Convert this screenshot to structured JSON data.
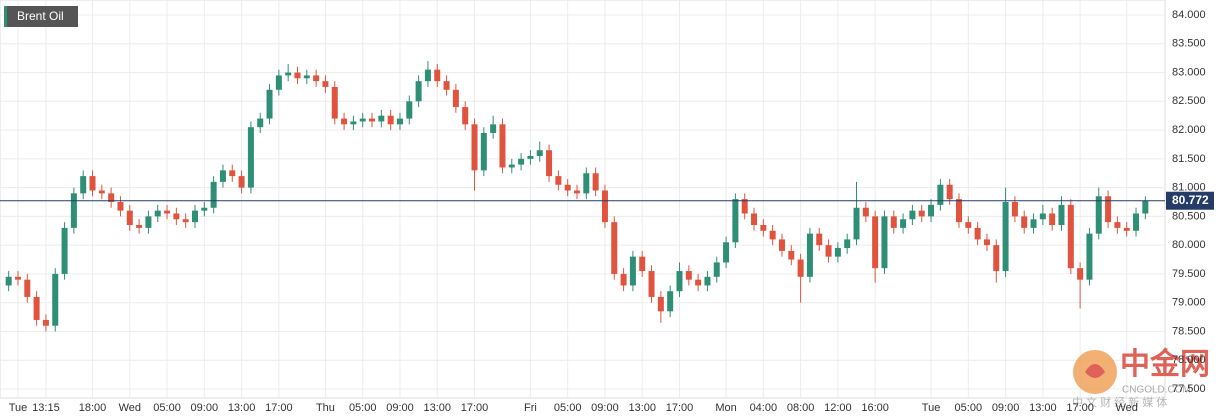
{
  "chart_data": {
    "type": "candlestick",
    "series_name": "Brent Oil",
    "up_color": "#2f8f76",
    "down_color": "#e0533f",
    "last_price": 80.772,
    "last_price_color": "#253c68",
    "grid": true,
    "ylim": [
      77.5,
      84.0
    ],
    "yticks": [
      {
        "value": 77.5,
        "label": "77.500"
      },
      {
        "value": 78.0,
        "label": "78.000"
      },
      {
        "value": 78.5,
        "label": "78.500"
      },
      {
        "value": 79.0,
        "label": "79.000"
      },
      {
        "value": 79.5,
        "label": "79.500"
      },
      {
        "value": 80.0,
        "label": "80.000"
      },
      {
        "value": 80.5,
        "label": "80.500"
      },
      {
        "value": 81.0,
        "label": "81.000"
      },
      {
        "value": 81.5,
        "label": "81.500"
      },
      {
        "value": 82.0,
        "label": "82.000"
      },
      {
        "value": 82.5,
        "label": "82.500"
      },
      {
        "value": 83.0,
        "label": "83.000"
      },
      {
        "value": 83.5,
        "label": "83.500"
      },
      {
        "value": 84.0,
        "label": "84.000"
      }
    ],
    "categories": [
      null,
      "Tue",
      null,
      null,
      "13:15",
      null,
      null,
      null,
      null,
      "18:00",
      null,
      null,
      null,
      "Wed",
      null,
      null,
      null,
      "05:00",
      null,
      null,
      null,
      "09:00",
      null,
      null,
      null,
      "13:00",
      null,
      null,
      null,
      "17:00",
      null,
      null,
      null,
      null,
      "Thu",
      null,
      null,
      null,
      "05:00",
      null,
      null,
      null,
      "09:00",
      null,
      null,
      null,
      "13:00",
      null,
      null,
      null,
      "17:00",
      null,
      null,
      null,
      null,
      null,
      "Fri",
      null,
      null,
      null,
      "05:00",
      null,
      null,
      null,
      "09:00",
      null,
      null,
      null,
      "13:00",
      null,
      null,
      null,
      "17:00",
      null,
      null,
      null,
      null,
      "Mon",
      null,
      null,
      null,
      "04:00",
      null,
      null,
      null,
      "08:00",
      null,
      null,
      null,
      "12:00",
      null,
      null,
      null,
      "16:00",
      null,
      null,
      null,
      null,
      null,
      "Tue",
      null,
      null,
      null,
      "05:00",
      null,
      null,
      null,
      "09:00",
      null,
      null,
      null,
      "13:00",
      null,
      null,
      null,
      "17:00",
      null,
      null,
      null,
      null,
      "Wed",
      null,
      null
    ],
    "open": [
      79.3,
      79.45,
      79.4,
      79.1,
      78.7,
      78.6,
      79.5,
      80.3,
      80.9,
      81.2,
      80.95,
      80.9,
      80.75,
      80.6,
      80.35,
      80.3,
      80.5,
      80.6,
      80.55,
      80.45,
      80.4,
      80.6,
      80.65,
      81.1,
      81.3,
      81.2,
      81.0,
      82.05,
      82.2,
      82.7,
      82.95,
      83.0,
      82.9,
      82.95,
      82.85,
      82.75,
      82.2,
      82.1,
      82.15,
      82.2,
      82.15,
      82.25,
      82.1,
      82.2,
      82.5,
      82.85,
      83.05,
      82.85,
      82.7,
      82.4,
      82.1,
      81.3,
      81.95,
      82.1,
      81.35,
      81.4,
      81.5,
      81.55,
      81.65,
      81.2,
      81.05,
      80.95,
      80.9,
      81.25,
      80.95,
      80.4,
      79.5,
      79.3,
      79.8,
      79.55,
      79.1,
      78.85,
      79.2,
      79.55,
      79.4,
      79.3,
      79.45,
      79.7,
      80.05,
      80.8,
      80.55,
      80.35,
      80.25,
      80.1,
      79.9,
      79.75,
      79.45,
      80.2,
      80.0,
      79.8,
      79.95,
      80.1,
      80.65,
      80.5,
      79.6,
      80.5,
      80.3,
      80.45,
      80.6,
      80.5,
      80.7,
      81.05,
      80.8,
      80.4,
      80.3,
      80.1,
      80.0,
      79.55,
      80.75,
      80.5,
      80.3,
      80.45,
      80.55,
      80.35,
      80.7,
      79.6,
      79.4,
      80.2,
      80.85,
      80.4,
      80.3,
      80.25,
      80.55
    ],
    "high": [
      79.55,
      79.55,
      79.5,
      79.2,
      78.8,
      79.6,
      80.4,
      81.0,
      81.3,
      81.3,
      81.05,
      81.0,
      80.85,
      80.7,
      80.45,
      80.6,
      80.7,
      80.7,
      80.65,
      80.55,
      80.7,
      80.75,
      81.2,
      81.4,
      81.4,
      81.3,
      82.15,
      82.3,
      82.8,
      83.05,
      83.15,
      83.1,
      83.05,
      83.05,
      82.95,
      82.85,
      82.3,
      82.25,
      82.3,
      82.3,
      82.35,
      82.35,
      82.3,
      82.6,
      82.95,
      83.2,
      83.15,
      82.95,
      82.8,
      82.5,
      82.2,
      82.05,
      82.25,
      82.2,
      81.5,
      81.6,
      81.65,
      81.8,
      81.75,
      81.3,
      81.15,
      81.05,
      81.35,
      81.35,
      81.05,
      80.5,
      79.6,
      79.9,
      79.9,
      79.65,
      79.2,
      79.3,
      79.7,
      79.65,
      79.5,
      79.55,
      79.8,
      80.15,
      80.9,
      80.9,
      80.65,
      80.45,
      80.35,
      80.2,
      80.0,
      79.85,
      80.3,
      80.3,
      80.1,
      80.05,
      80.2,
      81.1,
      80.75,
      80.6,
      80.6,
      80.6,
      80.55,
      80.7,
      80.7,
      80.8,
      81.15,
      81.15,
      80.9,
      80.5,
      80.4,
      80.2,
      80.1,
      81.0,
      80.85,
      80.6,
      80.55,
      80.7,
      80.65,
      80.85,
      80.8,
      79.7,
      80.3,
      81.0,
      80.95,
      80.5,
      80.4,
      80.65,
      80.85
    ],
    "low": [
      79.2,
      79.3,
      79.0,
      78.6,
      78.5,
      78.5,
      79.4,
      80.2,
      80.8,
      80.85,
      80.8,
      80.65,
      80.5,
      80.25,
      80.2,
      80.2,
      80.4,
      80.45,
      80.35,
      80.3,
      80.3,
      80.5,
      80.55,
      81.0,
      81.1,
      80.9,
      80.9,
      81.95,
      82.1,
      82.6,
      82.85,
      82.8,
      82.8,
      82.75,
      82.65,
      82.1,
      82.0,
      82.0,
      82.05,
      82.05,
      82.05,
      82.0,
      82.0,
      82.1,
      82.4,
      82.75,
      82.75,
      82.6,
      82.3,
      82.0,
      80.95,
      81.2,
      81.85,
      81.25,
      81.25,
      81.3,
      81.4,
      81.45,
      81.1,
      80.95,
      80.85,
      80.8,
      80.8,
      80.85,
      80.3,
      79.4,
      79.2,
      79.2,
      79.45,
      79.0,
      78.65,
      78.75,
      79.1,
      79.3,
      79.2,
      79.2,
      79.35,
      79.6,
      79.95,
      80.45,
      80.25,
      80.15,
      80.0,
      79.8,
      79.65,
      79.0,
      79.35,
      79.9,
      79.7,
      79.7,
      79.85,
      80.0,
      80.4,
      79.35,
      79.5,
      80.2,
      80.2,
      80.35,
      80.4,
      80.4,
      80.6,
      80.7,
      80.3,
      80.2,
      80.0,
      79.9,
      79.35,
      79.45,
      80.4,
      80.2,
      80.2,
      80.35,
      80.25,
      80.25,
      79.5,
      78.9,
      79.3,
      80.1,
      80.3,
      80.2,
      80.15,
      80.15,
      80.45
    ],
    "close": [
      79.45,
      79.4,
      79.1,
      78.7,
      78.6,
      79.5,
      80.3,
      80.9,
      81.2,
      80.95,
      80.9,
      80.75,
      80.6,
      80.35,
      80.3,
      80.5,
      80.6,
      80.55,
      80.45,
      80.4,
      80.6,
      80.65,
      81.1,
      81.3,
      81.2,
      81.0,
      82.05,
      82.2,
      82.7,
      82.95,
      83.0,
      82.9,
      82.95,
      82.85,
      82.75,
      82.2,
      82.1,
      82.15,
      82.2,
      82.15,
      82.25,
      82.1,
      82.2,
      82.5,
      82.85,
      83.05,
      82.85,
      82.7,
      82.4,
      82.1,
      81.3,
      81.95,
      82.1,
      81.35,
      81.4,
      81.5,
      81.55,
      81.65,
      81.2,
      81.05,
      80.95,
      80.9,
      81.25,
      80.95,
      80.4,
      79.5,
      79.3,
      79.8,
      79.55,
      79.1,
      78.85,
      79.2,
      79.55,
      79.4,
      79.3,
      79.45,
      79.7,
      80.05,
      80.8,
      80.55,
      80.35,
      80.25,
      80.1,
      79.9,
      79.75,
      79.45,
      80.2,
      80.0,
      79.8,
      79.95,
      80.1,
      80.65,
      80.5,
      79.6,
      80.5,
      80.3,
      80.45,
      80.6,
      80.5,
      80.7,
      81.05,
      80.8,
      80.4,
      80.3,
      80.1,
      80.0,
      79.55,
      80.75,
      80.5,
      80.3,
      80.45,
      80.55,
      80.35,
      80.7,
      79.6,
      79.4,
      80.2,
      80.85,
      80.4,
      80.3,
      80.25,
      80.55,
      80.772
    ],
    "watermark": {
      "title": "中金网",
      "subtitle": "CNGOLD.COM",
      "tagline": "中 文 财 经 新 媒 体"
    }
  }
}
